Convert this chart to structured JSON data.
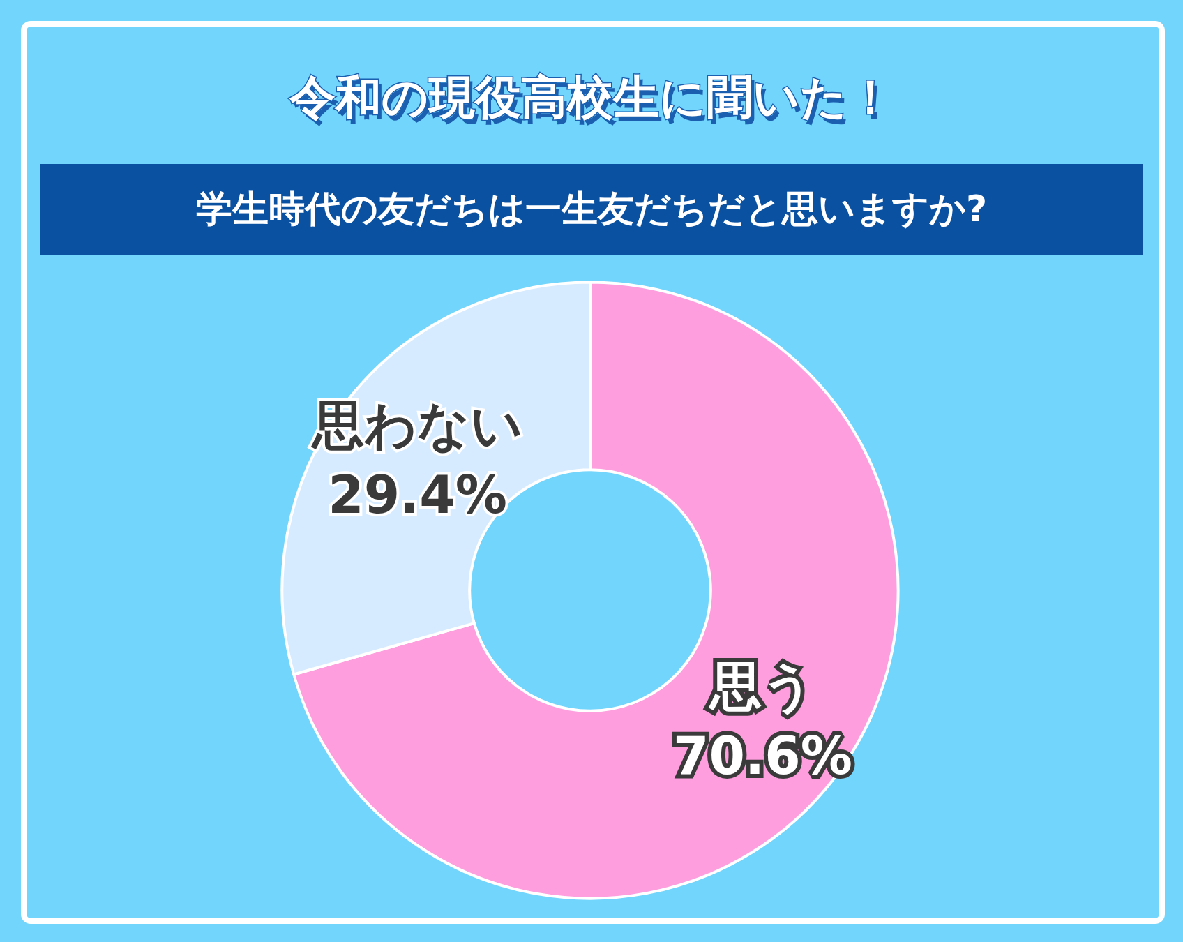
{
  "chart_data": {
    "type": "donut",
    "title": "令和の現役高校生に聞いた！",
    "subtitle": "学生時代の友だちは一生友だちだと思いますか?",
    "categories": [
      "思う",
      "思わない"
    ],
    "values": [
      70.6,
      29.4
    ],
    "colors": [
      "#ff9ede",
      "#d6ebff"
    ],
    "value_labels": [
      "70.6%",
      "29.4%"
    ],
    "legend": false
  }
}
